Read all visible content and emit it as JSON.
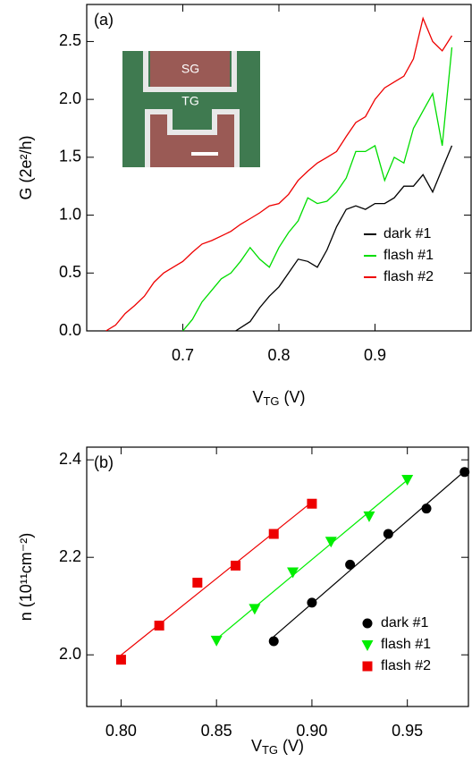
{
  "chart_data": [
    {
      "type": "line",
      "annotation": "(a)",
      "y_label": "G (2e²/h)",
      "x_label": [
        "V",
        "TG",
        " (V)"
      ],
      "inset_labels": [
        "SG",
        "TG"
      ],
      "xlim": [
        0.6,
        1.0
      ],
      "ylim": [
        0,
        2.82
      ],
      "xticks": [
        0.7,
        0.8,
        0.9
      ],
      "yticks": [
        {
          "value": 0,
          "label": "0.0"
        },
        0.5,
        {
          "value": 1,
          "label": "1.0"
        },
        1.5,
        {
          "value": 2,
          "label": "2.0"
        },
        2.5
      ],
      "legend": "lower right",
      "series": [
        {
          "name": "dark #1",
          "color": "#000000",
          "x": [
            0.755,
            0.77,
            0.78,
            0.79,
            0.8,
            0.81,
            0.82,
            0.83,
            0.84,
            0.85,
            0.86,
            0.87,
            0.88,
            0.89,
            0.9,
            0.91,
            0.92,
            0.93,
            0.94,
            0.95,
            0.96,
            0.97,
            0.98
          ],
          "values": [
            0.0,
            0.08,
            0.2,
            0.3,
            0.38,
            0.5,
            0.62,
            0.6,
            0.55,
            0.7,
            0.9,
            1.05,
            1.08,
            1.05,
            1.1,
            1.1,
            1.15,
            1.25,
            1.25,
            1.35,
            1.2,
            1.4,
            1.6
          ]
        },
        {
          "name": "flash #1",
          "color": "#00dd00",
          "x": [
            0.7,
            0.71,
            0.72,
            0.73,
            0.74,
            0.75,
            0.76,
            0.77,
            0.78,
            0.79,
            0.8,
            0.81,
            0.82,
            0.83,
            0.84,
            0.85,
            0.86,
            0.87,
            0.88,
            0.89,
            0.9,
            0.91,
            0.92,
            0.93,
            0.94,
            0.95,
            0.96,
            0.97,
            0.98
          ],
          "values": [
            0.0,
            0.1,
            0.25,
            0.35,
            0.45,
            0.5,
            0.6,
            0.72,
            0.62,
            0.55,
            0.72,
            0.85,
            0.95,
            1.15,
            1.1,
            1.12,
            1.2,
            1.32,
            1.55,
            1.55,
            1.6,
            1.3,
            1.5,
            1.45,
            1.75,
            1.9,
            2.05,
            1.6,
            2.45
          ]
        },
        {
          "name": "flash #2",
          "color": "#ee0000",
          "x": [
            0.62,
            0.63,
            0.64,
            0.65,
            0.66,
            0.67,
            0.68,
            0.69,
            0.7,
            0.71,
            0.72,
            0.73,
            0.74,
            0.75,
            0.76,
            0.77,
            0.78,
            0.79,
            0.8,
            0.81,
            0.82,
            0.83,
            0.84,
            0.85,
            0.86,
            0.87,
            0.88,
            0.89,
            0.9,
            0.91,
            0.92,
            0.93,
            0.94,
            0.95,
            0.96,
            0.97,
            0.98
          ],
          "values": [
            0.0,
            0.05,
            0.15,
            0.22,
            0.3,
            0.42,
            0.5,
            0.55,
            0.6,
            0.68,
            0.75,
            0.78,
            0.82,
            0.86,
            0.92,
            0.97,
            1.02,
            1.08,
            1.1,
            1.18,
            1.3,
            1.38,
            1.45,
            1.5,
            1.55,
            1.68,
            1.8,
            1.85,
            2.0,
            2.1,
            2.15,
            2.2,
            2.35,
            2.7,
            2.5,
            2.42,
            2.55
          ]
        }
      ]
    },
    {
      "type": "scatter",
      "annotation": "(b)",
      "y_label": "n (10¹¹cm⁻²)",
      "x_label": [
        "V",
        "TG",
        " (V)"
      ],
      "xlim": [
        0.782,
        0.982
      ],
      "ylim": [
        1.894,
        2.426
      ],
      "xticks": [
        {
          "value": 0.8,
          "label": "0.80"
        },
        0.85,
        {
          "value": 0.9,
          "label": "0.90"
        },
        0.95
      ],
      "yticks": [
        {
          "value": 2,
          "label": "2.0"
        },
        2.2,
        2.4
      ],
      "legend": "lower right",
      "fit_lines": true,
      "series": [
        {
          "name": "dark #1",
          "color": "#000000",
          "marker": "circle",
          "x": [
            0.88,
            0.9,
            0.92,
            0.94,
            0.96,
            0.98
          ],
          "values": [
            2.028,
            2.107,
            2.185,
            2.248,
            2.3,
            2.375
          ]
        },
        {
          "name": "flash #1",
          "color": "#00ee00",
          "marker": "triangle",
          "x": [
            0.85,
            0.87,
            0.89,
            0.91,
            0.93,
            0.95
          ],
          "values": [
            2.03,
            2.095,
            2.17,
            2.233,
            2.285,
            2.36
          ]
        },
        {
          "name": "flash #2",
          "color": "#ee0000",
          "marker": "square",
          "x": [
            0.8,
            0.82,
            0.84,
            0.86,
            0.88,
            0.9
          ],
          "values": [
            1.99,
            2.06,
            2.148,
            2.183,
            2.248,
            2.31
          ]
        }
      ]
    }
  ]
}
